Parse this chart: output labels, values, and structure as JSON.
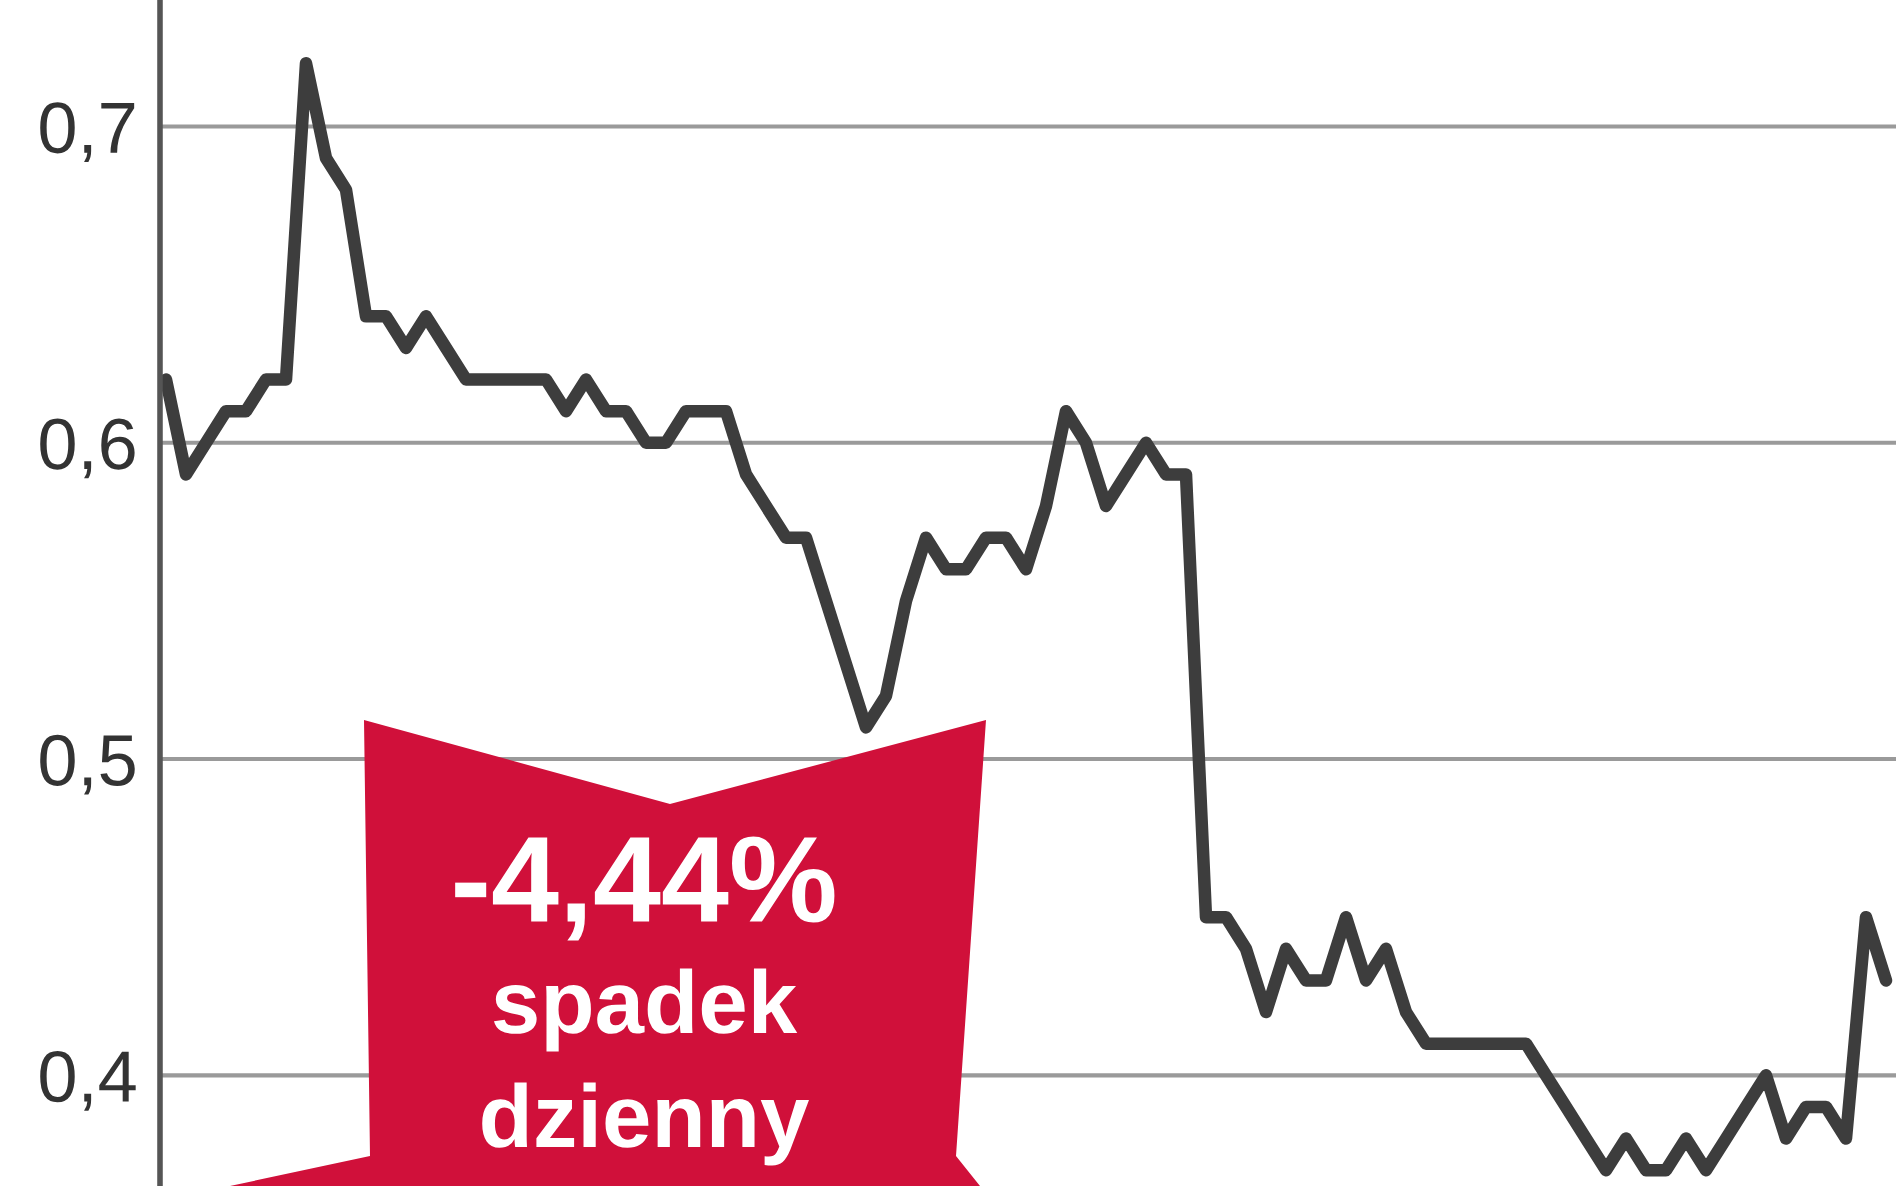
{
  "chart_data": {
    "type": "line",
    "categories": [
      null,
      null,
      null,
      null,
      null,
      null,
      null,
      null,
      null,
      null,
      null,
      null,
      null,
      null,
      null,
      null,
      null,
      null,
      null,
      null,
      null,
      null,
      null,
      null,
      null,
      null,
      null,
      null,
      null,
      null,
      null,
      null,
      null,
      null,
      null,
      null,
      null,
      null,
      null,
      null,
      null,
      null,
      null,
      null,
      null,
      null,
      null,
      null,
      null,
      null,
      null,
      null,
      null,
      null,
      null,
      null,
      null,
      null,
      null,
      null,
      null,
      null,
      null,
      null,
      null,
      null,
      null,
      null,
      null,
      null,
      null,
      null,
      null,
      null,
      null,
      null,
      null,
      null,
      null,
      null,
      null,
      null,
      null,
      null,
      null,
      null,
      null
    ],
    "series": [
      {
        "color": "#3d3d3d",
        "values": [
          0.62,
          0.59,
          0.6,
          0.61,
          0.61,
          0.62,
          0.62,
          0.72,
          0.69,
          0.68,
          0.64,
          0.64,
          0.63,
          0.64,
          0.63,
          0.62,
          0.62,
          0.62,
          0.62,
          0.62,
          0.61,
          0.62,
          0.61,
          0.61,
          0.6,
          0.6,
          0.61,
          0.61,
          0.61,
          0.59,
          0.58,
          0.57,
          0.57,
          0.55,
          0.53,
          0.51,
          0.52,
          0.55,
          0.57,
          0.56,
          0.56,
          0.57,
          0.57,
          0.56,
          0.58,
          0.61,
          0.6,
          0.58,
          0.59,
          0.6,
          0.59,
          0.59,
          0.45,
          0.45,
          0.44,
          0.42,
          0.44,
          0.43,
          0.43,
          0.45,
          0.43,
          0.44,
          0.42,
          0.41,
          0.41,
          0.41,
          0.41,
          0.41,
          0.41,
          0.4,
          0.39,
          0.38,
          0.37,
          0.38,
          0.37,
          0.37,
          0.38,
          0.37,
          0.38,
          0.39,
          0.4,
          0.38,
          0.39,
          0.39,
          0.38,
          0.45,
          0.43
        ]
      }
    ],
    "ylim": [
      0.365,
      0.74
    ],
    "yticks": [
      {
        "value": 0.4,
        "label": "0,4"
      },
      {
        "value": 0.5,
        "label": "0,5"
      },
      {
        "value": 0.6,
        "label": "0,6"
      },
      {
        "value": 0.7,
        "label": "0,7"
      }
    ],
    "grid": "y",
    "marker": "none",
    "line_style": "solid",
    "tick_labels": "y",
    "annotations": [
      "-4,44%",
      "spadek",
      "dzienny"
    ]
  }
}
